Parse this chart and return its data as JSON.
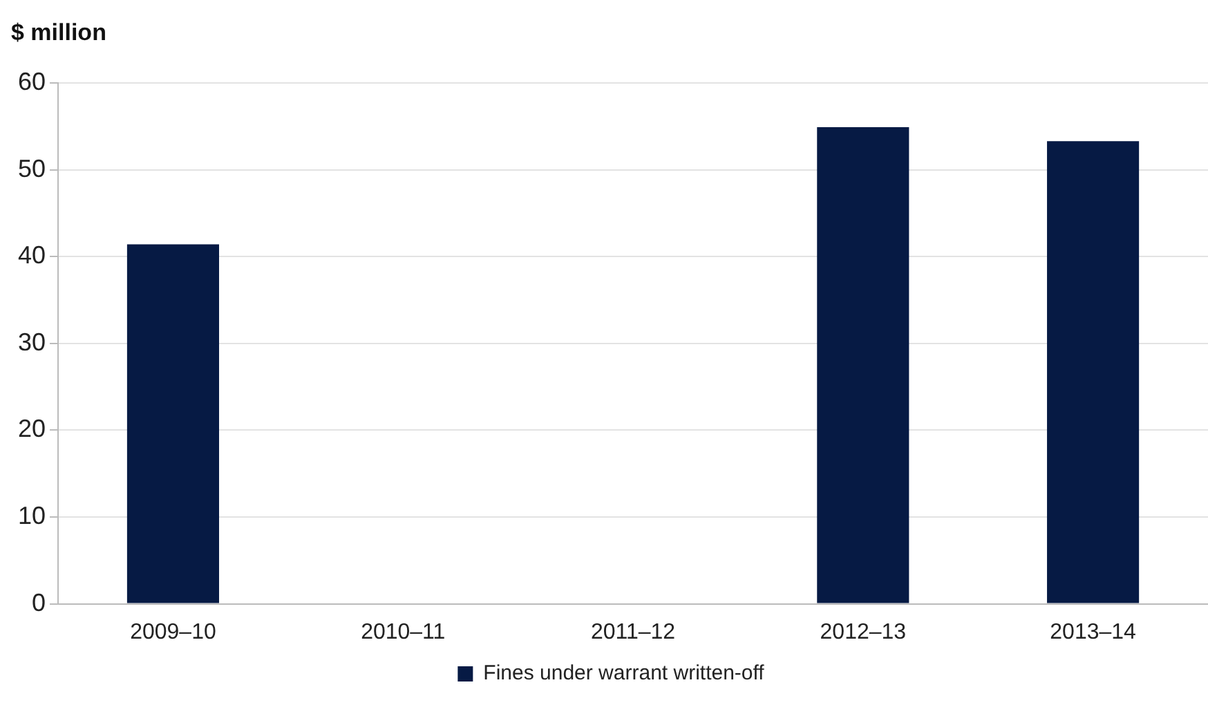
{
  "chart_data": {
    "type": "bar",
    "ylabel": "$ million",
    "categories": [
      "2009–10",
      "2010–11",
      "2011–12",
      "2012–13",
      "2013–14"
    ],
    "series": [
      {
        "name": "Fines under warrant written-off",
        "color": "#061a44",
        "values": [
          41.4,
          null,
          null,
          54.9,
          53.3
        ]
      }
    ],
    "ylim": [
      0,
      60
    ],
    "yticks": [
      0,
      10,
      20,
      30,
      40,
      50,
      60
    ],
    "grid": "y",
    "legend": "bottom"
  }
}
